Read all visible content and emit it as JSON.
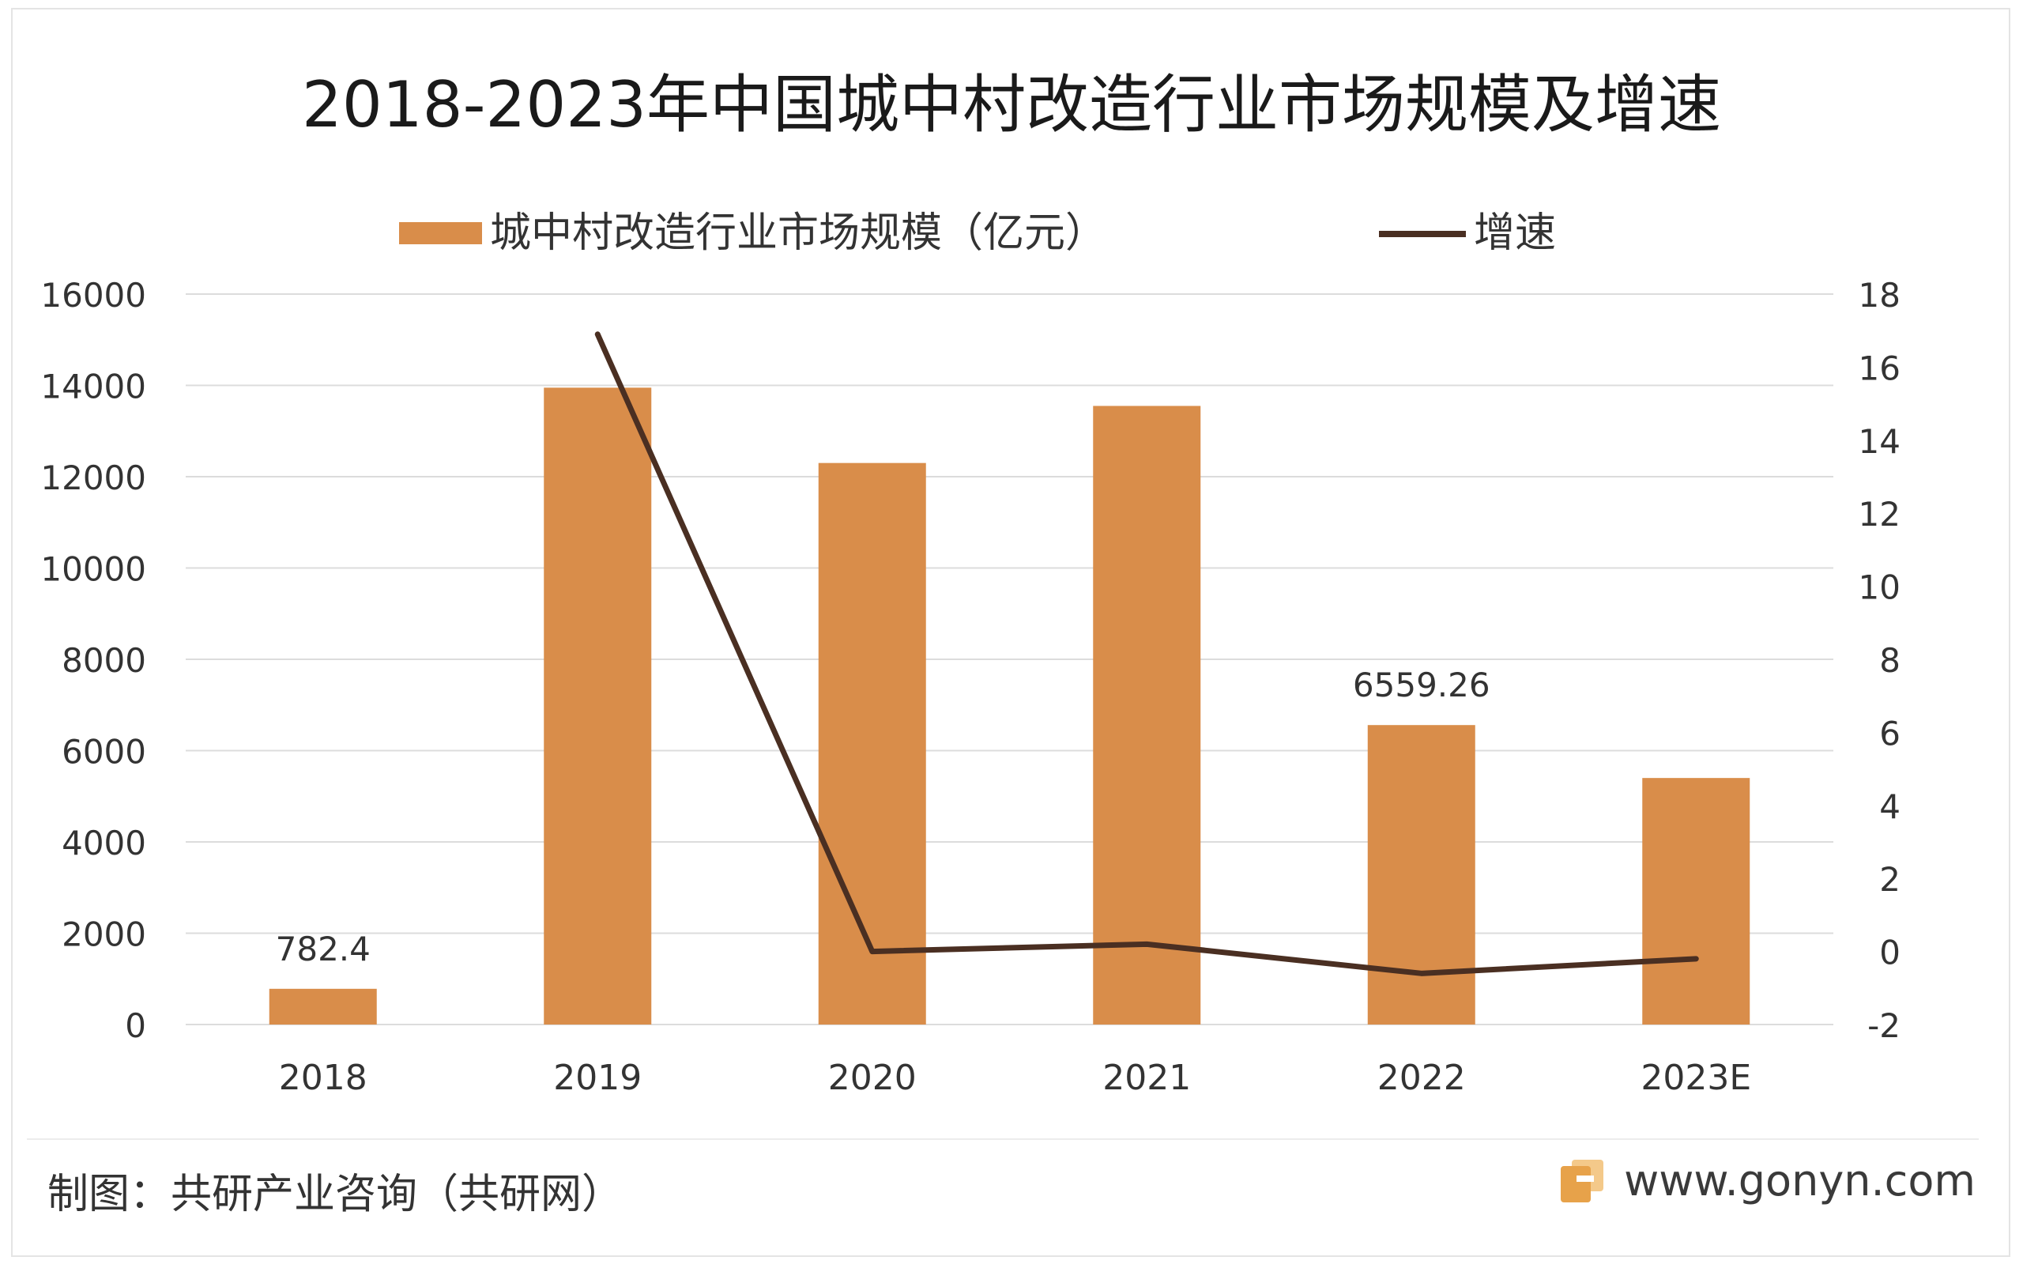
{
  "chart_data": {
    "type": "bar",
    "title": "2018-2023年中国城中村改造行业市场规模及增速",
    "categories": [
      "2018",
      "2019",
      "2020",
      "2021",
      "2022",
      "2023E"
    ],
    "series": [
      {
        "name": "城中村改造行业市场规模（亿元）",
        "type": "bar",
        "axis": "left",
        "values": [
          782.4,
          13950,
          12300,
          13550,
          6559.26,
          5400
        ],
        "data_labels": [
          "782.4",
          null,
          null,
          null,
          "6559.26",
          null
        ]
      },
      {
        "name": "增速",
        "type": "line",
        "axis": "right",
        "values": [
          null,
          16.9,
          0.0,
          0.2,
          -0.6,
          -0.2
        ]
      }
    ],
    "y_left": {
      "lim": [
        0,
        16000
      ],
      "ticks": [
        "0",
        "2000",
        "4000",
        "6000",
        "8000",
        "10000",
        "12000",
        "14000",
        "16000"
      ]
    },
    "y_right": {
      "lim": [
        -2,
        18
      ],
      "ticks": [
        "-2",
        "0",
        "2",
        "4",
        "6",
        "8",
        "10",
        "12",
        "14",
        "16",
        "18"
      ]
    },
    "grid": true,
    "legend": "top-center",
    "colors": {
      "bar": "#d98d4a",
      "line": "#4a2f22",
      "grid": "#dcdcdc",
      "text": "#333333"
    }
  },
  "footer": {
    "source": "制图：共研产业咨询（共研网）",
    "website": "www.gonyn.com",
    "logo_icon": "gonyn-logo-icon"
  }
}
